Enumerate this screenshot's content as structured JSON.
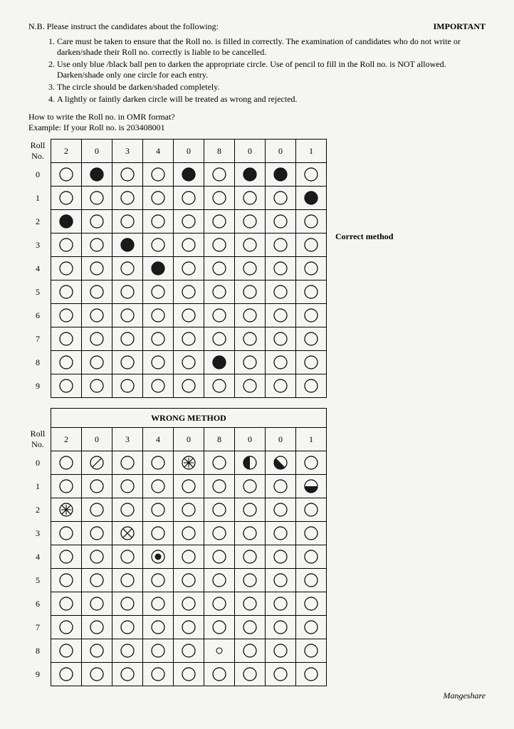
{
  "header": {
    "nb": "N.B. Please instruct the candidates about the following:",
    "important": "IMPORTANT"
  },
  "instructions": [
    "Care must be taken to ensure that the Roll no. is filled in correctly. The examination of candidates who do not write or darken/shade their Roll no. correctly is liable to be cancelled.",
    "Use only blue /black ball pen to darken the appropriate circle. Use of pencil to fill in the Roll no. is NOT allowed. Darken/shade only one circle for each entry.",
    "The circle should be darken/shaded completely.",
    "A lightly or faintly darken circle will be treated as wrong and rejected."
  ],
  "howto": {
    "q": "How to write the Roll no. in OMR format?",
    "ex": "Example: If your Roll no. is 203408001"
  },
  "labels": {
    "rollno": "Roll No.",
    "correct": "Correct method",
    "wrong": "WRONG METHOD",
    "signature": "Mangeshare"
  },
  "columns": [
    "2",
    "0",
    "3",
    "4",
    "0",
    "8",
    "0",
    "0",
    "1"
  ],
  "rows": [
    "0",
    "1",
    "2",
    "3",
    "4",
    "5",
    "6",
    "7",
    "8",
    "9"
  ],
  "correct_grid": [
    [
      "empty",
      "filled",
      "empty",
      "empty",
      "filled",
      "empty",
      "filled",
      "filled",
      "empty"
    ],
    [
      "empty",
      "empty",
      "empty",
      "empty",
      "empty",
      "empty",
      "empty",
      "empty",
      "filled"
    ],
    [
      "filled",
      "empty",
      "empty",
      "empty",
      "empty",
      "empty",
      "empty",
      "empty",
      "empty"
    ],
    [
      "empty",
      "empty",
      "filled",
      "empty",
      "empty",
      "empty",
      "empty",
      "empty",
      "empty"
    ],
    [
      "empty",
      "empty",
      "empty",
      "filled",
      "empty",
      "empty",
      "empty",
      "empty",
      "empty"
    ],
    [
      "empty",
      "empty",
      "empty",
      "empty",
      "empty",
      "empty",
      "empty",
      "empty",
      "empty"
    ],
    [
      "empty",
      "empty",
      "empty",
      "empty",
      "empty",
      "empty",
      "empty",
      "empty",
      "empty"
    ],
    [
      "empty",
      "empty",
      "empty",
      "empty",
      "empty",
      "empty",
      "empty",
      "empty",
      "empty"
    ],
    [
      "empty",
      "empty",
      "empty",
      "empty",
      "empty",
      "filled",
      "empty",
      "empty",
      "empty"
    ],
    [
      "empty",
      "empty",
      "empty",
      "empty",
      "empty",
      "empty",
      "empty",
      "empty",
      "empty"
    ]
  ],
  "wrong_grid": [
    [
      "empty",
      "slash",
      "empty",
      "empty",
      "hatch",
      "empty",
      "halfleft",
      "halfdiag",
      "empty"
    ],
    [
      "empty",
      "empty",
      "empty",
      "empty",
      "empty",
      "empty",
      "empty",
      "empty",
      "halfbottom"
    ],
    [
      "hatch",
      "empty",
      "empty",
      "empty",
      "empty",
      "empty",
      "empty",
      "empty",
      "empty"
    ],
    [
      "empty",
      "empty",
      "cross",
      "empty",
      "empty",
      "empty",
      "empty",
      "empty",
      "empty"
    ],
    [
      "empty",
      "empty",
      "empty",
      "dot",
      "empty",
      "empty",
      "empty",
      "empty",
      "empty"
    ],
    [
      "empty",
      "empty",
      "empty",
      "empty",
      "empty",
      "empty",
      "empty",
      "empty",
      "empty"
    ],
    [
      "empty",
      "empty",
      "empty",
      "empty",
      "empty",
      "empty",
      "empty",
      "empty",
      "empty"
    ],
    [
      "empty",
      "empty",
      "empty",
      "empty",
      "empty",
      "empty",
      "empty",
      "empty",
      "empty"
    ],
    [
      "empty",
      "empty",
      "empty",
      "empty",
      "empty",
      "tiny",
      "empty",
      "empty",
      "empty"
    ],
    [
      "empty",
      "empty",
      "empty",
      "empty",
      "empty",
      "empty",
      "empty",
      "empty",
      "empty"
    ]
  ],
  "style": {
    "bubble_r": 9,
    "stroke": "#000",
    "fill_color": "#1a1a1a",
    "background": "#f5f5f3"
  }
}
